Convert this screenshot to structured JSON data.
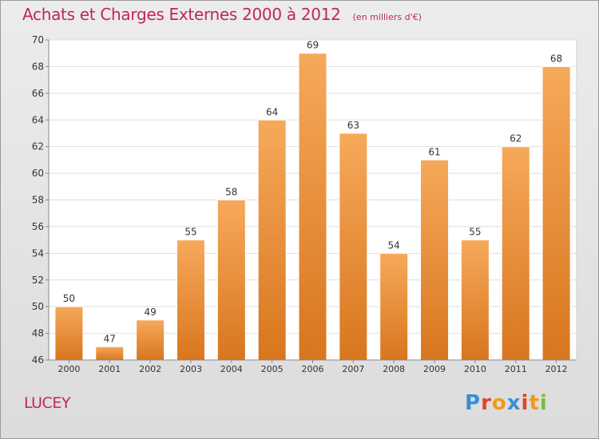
{
  "header": {
    "title": "Achats et Charges Externes 2000 à 2012",
    "unit": "(en milliers d'€)"
  },
  "footer": {
    "town": "LUCEY",
    "logo_text": "Proxiti",
    "logo_colors": [
      "#3a8fd6",
      "#e0432a",
      "#f09a1a",
      "#3a8fd6",
      "#e0432a",
      "#f09a1a",
      "#7cbd3a"
    ]
  },
  "colors": {
    "title": "#c0265a",
    "bar_top": "#f6a95a",
    "bar_bottom": "#d8761e"
  },
  "chart_data": {
    "type": "bar",
    "title": "Achats et Charges Externes 2000 à 2012",
    "categories": [
      "2000",
      "2001",
      "2002",
      "2003",
      "2004",
      "2005",
      "2006",
      "2007",
      "2008",
      "2009",
      "2010",
      "2011",
      "2012"
    ],
    "values": [
      50,
      47,
      49,
      55,
      58,
      64,
      69,
      63,
      54,
      61,
      55,
      62,
      68
    ],
    "ylim": [
      46,
      70
    ],
    "yticks": [
      46,
      48,
      50,
      52,
      54,
      56,
      58,
      60,
      62,
      64,
      66,
      68,
      70
    ],
    "grid": true,
    "data_labels": true
  }
}
